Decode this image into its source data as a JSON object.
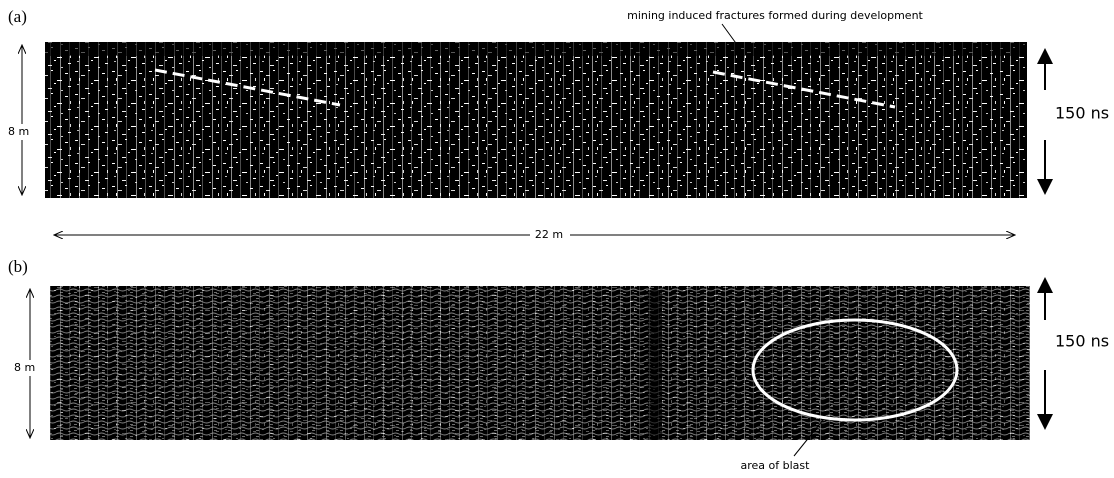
{
  "panels": [
    {
      "label": "(a)",
      "annotation": "mining induced fractures formed during development",
      "depth": "8 m",
      "time": "150 ns"
    },
    {
      "label": "(b)",
      "annotation": "area of blast",
      "depth": "8 m",
      "time": "150 ns"
    }
  ],
  "scale": "22 m"
}
